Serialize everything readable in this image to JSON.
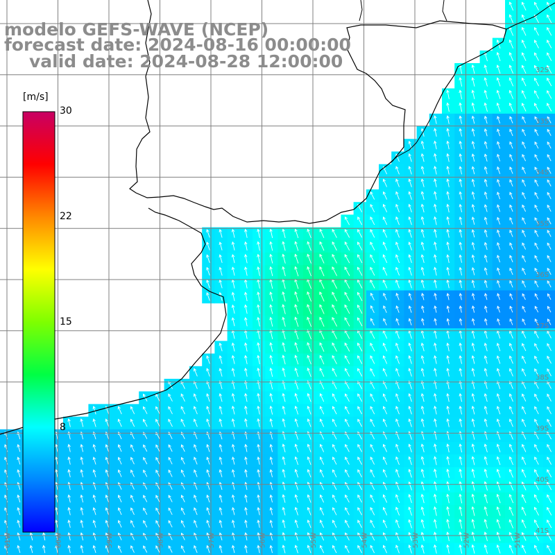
{
  "title": {
    "line1": "modelo GEFS-WAVE (NCEP)",
    "line2": "forecast date: 2024-08-16 00:00:00",
    "line3": "valid date: 2024-08-28 12:00:00"
  },
  "colorbar": {
    "unit": "[m/s]",
    "ticks": [
      "30",
      "22",
      "15",
      "8"
    ],
    "tick_values": [
      30,
      22,
      15,
      8
    ],
    "range": [
      0,
      30
    ],
    "colors": [
      "#0000ff",
      "#0088ff",
      "#00ffff",
      "#00ff44",
      "#7fff00",
      "#ffff00",
      "#ff8800",
      "#ff0000",
      "#c80064"
    ]
  },
  "map": {
    "land_color": "#ffffff",
    "grid_color": "#7f7f7f",
    "coast_color": "#000000",
    "arrow_color": "#ffffff",
    "lon_labels": [
      "61W",
      "60W",
      "59W",
      "58W",
      "57W",
      "56W",
      "55W",
      "54W",
      "53W",
      "52W",
      "51W"
    ],
    "lat_labels": [
      "32S",
      "33S",
      "34S",
      "35S",
      "36S",
      "37S",
      "38S",
      "39S",
      "40S",
      "41S"
    ],
    "lon_range": [
      -61,
      -50
    ],
    "lat_range": [
      -41,
      -30
    ]
  }
}
